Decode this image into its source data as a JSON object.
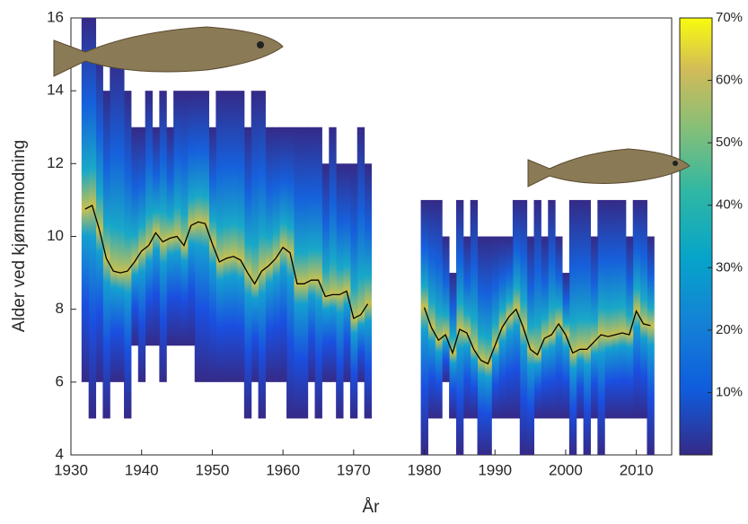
{
  "chart_data": {
    "type": "density-line",
    "xlabel": "År",
    "ylabel": "Alder ved kjønnsmodning",
    "x": [
      1932,
      1933,
      1934,
      1935,
      1936,
      1937,
      1938,
      1939,
      1940,
      1941,
      1942,
      1943,
      1944,
      1945,
      1946,
      1947,
      1948,
      1949,
      1950,
      1951,
      1952,
      1953,
      1954,
      1955,
      1956,
      1957,
      1958,
      1959,
      1960,
      1961,
      1962,
      1963,
      1964,
      1965,
      1966,
      1967,
      1968,
      1969,
      1970,
      1971,
      1972,
      1973,
      1974,
      1975,
      1976,
      1977,
      1978,
      1979,
      1980,
      1981,
      1982,
      1983,
      1984,
      1985,
      1986,
      1987,
      1988,
      1989,
      1990,
      1991,
      1992,
      1993,
      1994,
      1995,
      1996,
      1997,
      1998,
      1999,
      2000,
      2001,
      2002,
      2003,
      2004,
      2005,
      2006,
      2007,
      2008,
      2009,
      2010,
      2011,
      2012
    ],
    "series": [
      {
        "color": "#000000",
        "values": [
          10.75,
          10.85,
          10.2,
          9.4,
          9.05,
          9.0,
          9.05,
          9.3,
          9.6,
          9.75,
          10.1,
          9.85,
          9.95,
          10.0,
          9.75,
          10.3,
          10.4,
          10.35,
          9.8,
          9.3,
          9.4,
          9.45,
          9.35,
          9.0,
          8.7,
          9.05,
          9.2,
          9.4,
          9.7,
          9.55,
          8.7,
          8.7,
          8.8,
          8.8,
          8.35,
          8.4,
          8.4,
          8.5,
          7.75,
          7.85,
          8.15,
          null,
          null,
          null,
          null,
          null,
          null,
          null,
          8.05,
          7.5,
          7.15,
          7.3,
          6.8,
          7.45,
          7.35,
          6.9,
          6.6,
          6.5,
          7.0,
          7.5,
          7.8,
          8.0,
          7.5,
          6.9,
          6.75,
          7.2,
          7.3,
          7.6,
          7.3,
          6.8,
          6.9,
          6.9,
          7.1,
          7.3,
          7.25,
          7.3,
          7.35,
          7.3,
          7.95,
          7.6,
          7.55
        ]
      }
    ],
    "range": {
      "low": [
        6,
        5,
        6,
        5,
        6,
        6,
        5,
        7,
        6,
        7,
        7,
        6,
        7,
        7,
        7,
        7,
        6,
        6,
        6,
        6,
        6,
        6,
        6,
        5,
        6,
        5,
        6,
        6,
        6,
        5,
        5,
        5,
        6,
        5,
        6,
        6,
        5,
        6,
        5,
        6,
        5,
        null,
        null,
        null,
        null,
        null,
        null,
        null,
        4,
        5,
        5,
        6,
        5,
        4,
        5,
        5,
        4,
        4,
        5,
        5,
        5,
        5,
        4,
        4,
        5,
        5,
        5,
        5,
        5,
        4,
        5,
        4,
        5,
        4,
        5,
        5,
        5,
        5,
        5,
        5,
        4
      ],
      "high": [
        16,
        16,
        15,
        14,
        15,
        15,
        14,
        13,
        13,
        14,
        13,
        14,
        13,
        14,
        14,
        14,
        14,
        14,
        13,
        14,
        14,
        14,
        14,
        13,
        14,
        14,
        13,
        13,
        13,
        13,
        13,
        13,
        13,
        13,
        12,
        13,
        12,
        12,
        12,
        13,
        12,
        null,
        null,
        null,
        null,
        null,
        null,
        null,
        11,
        11,
        11,
        10,
        9,
        11,
        10,
        11,
        10,
        10,
        10,
        10,
        10,
        11,
        11,
        10,
        11,
        10,
        11,
        10,
        9,
        11,
        11,
        11,
        10,
        11,
        11,
        11,
        11,
        10,
        11,
        11,
        10
      ]
    },
    "xlim": [
      1930,
      2015
    ],
    "xticks": [
      1930,
      1940,
      1950,
      1960,
      1970,
      1980,
      1990,
      2000,
      2010
    ],
    "ylim": [
      4,
      16
    ],
    "yticks": [
      4,
      6,
      8,
      10,
      12,
      14,
      16
    ],
    "colorbar": {
      "lim": [
        0,
        70
      ],
      "ticks": [
        {
          "value": 10,
          "label": "10%"
        },
        {
          "value": 20,
          "label": "20%"
        },
        {
          "value": 30,
          "label": "30%"
        },
        {
          "value": 40,
          "label": "40%"
        },
        {
          "value": 50,
          "label": "50%"
        },
        {
          "value": 60,
          "label": "60%"
        },
        {
          "value": 70,
          "label": "70%"
        }
      ]
    }
  }
}
